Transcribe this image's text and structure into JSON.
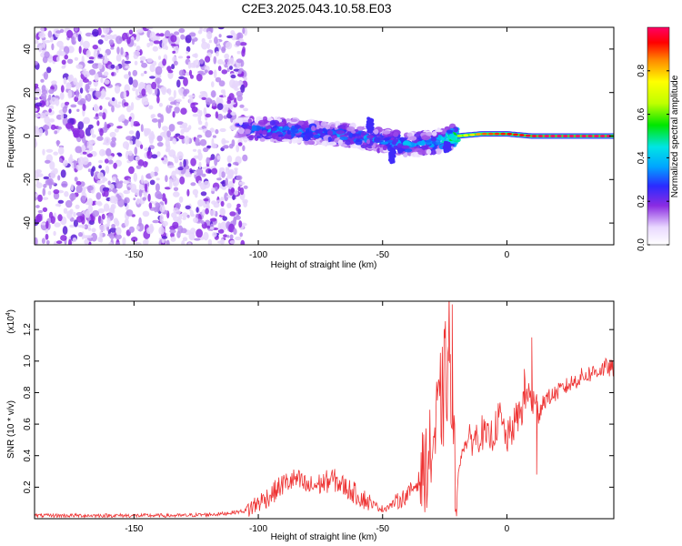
{
  "title": "C2E3.2025.043.10.58.E03",
  "chart_data": [
    {
      "type": "heatmap",
      "xlabel": "Height of straight line (km)",
      "ylabel": "Frequency (Hz)",
      "xlim": [
        -190,
        43
      ],
      "ylim": [
        -50,
        50
      ],
      "x_ticks": [
        -150,
        -100,
        -50,
        0
      ],
      "x_tick_labels": [
        "-150",
        "-100",
        "-50",
        "0"
      ],
      "y_ticks": [
        -40,
        -20,
        0,
        20,
        40
      ],
      "y_tick_labels": [
        "-40",
        "-20",
        "0",
        "20",
        "40"
      ],
      "colorbar": {
        "label": "Normalized spectral amplitude",
        "range": [
          0,
          1
        ],
        "ticks": [
          0.0,
          0.2,
          0.4,
          0.6,
          0.8
        ],
        "tick_labels": [
          "0.0",
          "0.2",
          "0.4",
          "0.6",
          "0.8"
        ]
      },
      "noise_region": {
        "x_range": [
          -190,
          -105
        ],
        "frequency_range": [
          -50,
          50
        ],
        "amplitude": 0.1
      },
      "ridge": [
        {
          "x": -108,
          "freq": 4,
          "amp": 0.2
        },
        {
          "x": -100,
          "freq": 3,
          "amp": 0.28
        },
        {
          "x": -90,
          "freq": 3,
          "amp": 0.32
        },
        {
          "x": -80,
          "freq": 2,
          "amp": 0.3
        },
        {
          "x": -70,
          "freq": 1,
          "amp": 0.3
        },
        {
          "x": -60,
          "freq": 0,
          "amp": 0.3
        },
        {
          "x": -50,
          "freq": -2,
          "amp": 0.3
        },
        {
          "x": -40,
          "freq": -4,
          "amp": 0.34
        },
        {
          "x": -30,
          "freq": -3,
          "amp": 0.34
        },
        {
          "x": -20,
          "freq": 0,
          "amp": 0.6
        },
        {
          "x": -10,
          "freq": 1,
          "amp": 0.85
        },
        {
          "x": 0,
          "freq": 1,
          "amp": 0.9
        },
        {
          "x": 10,
          "freq": 0,
          "amp": 0.95
        },
        {
          "x": 20,
          "freq": 0,
          "amp": 1.0
        },
        {
          "x": 30,
          "freq": 0,
          "amp": 1.0
        },
        {
          "x": 43,
          "freq": 0,
          "amp": 1.0
        }
      ]
    },
    {
      "type": "line",
      "xlabel": "Height of straight line (km)",
      "ylabel": "SNR (10 * v/v)",
      "y_multiplier_label": "(x10",
      "y_multiplier_exp": "4",
      "y_multiplier_close": ")",
      "xlim": [
        -190,
        43
      ],
      "ylim": [
        0,
        1.38
      ],
      "x_ticks": [
        -150,
        -100,
        -50,
        0
      ],
      "x_tick_labels": [
        "-150",
        "-100",
        "-50",
        "0"
      ],
      "y_ticks": [
        0.2,
        0.4,
        0.6,
        0.8,
        1.0,
        1.2
      ],
      "y_tick_labels": [
        "0.2",
        "0.4",
        "0.6",
        "0.8",
        "1.0",
        "1.2"
      ],
      "color": "#ee3333",
      "series": [
        {
          "x": [
            -190,
            -170,
            -150,
            -130,
            -115,
            -105,
            -100,
            -95,
            -90,
            -85,
            -80,
            -75,
            -70,
            -65,
            -60,
            -55,
            -50,
            -45,
            -40,
            -35,
            -32,
            -30,
            -28,
            -25,
            -23,
            -22,
            -20,
            -18,
            -15,
            -12,
            -10,
            -8,
            -5,
            -3,
            0,
            3,
            6,
            8,
            10,
            12,
            15,
            20,
            25,
            30,
            35,
            40,
            43
          ],
          "y": [
            0.02,
            0.02,
            0.02,
            0.02,
            0.03,
            0.05,
            0.1,
            0.15,
            0.22,
            0.25,
            0.2,
            0.22,
            0.25,
            0.2,
            0.15,
            0.1,
            0.06,
            0.1,
            0.15,
            0.25,
            0.35,
            0.45,
            0.6,
            0.85,
            1.1,
            0.5,
            0.2,
            0.45,
            0.5,
            0.52,
            0.55,
            0.5,
            0.55,
            0.65,
            0.5,
            0.6,
            0.7,
            0.8,
            0.75,
            0.7,
            0.75,
            0.8,
            0.85,
            0.9,
            0.93,
            0.96,
            0.95
          ]
        }
      ],
      "spikes": [
        {
          "x": -22,
          "y": 1.36
        },
        {
          "x": -23.5,
          "y": 1.0
        },
        {
          "x": -28,
          "y": 0.75
        },
        {
          "x": 10,
          "y": 1.15
        },
        {
          "x": 7,
          "y": 0.95
        },
        {
          "x": 12,
          "y": 0.28
        }
      ]
    }
  ]
}
